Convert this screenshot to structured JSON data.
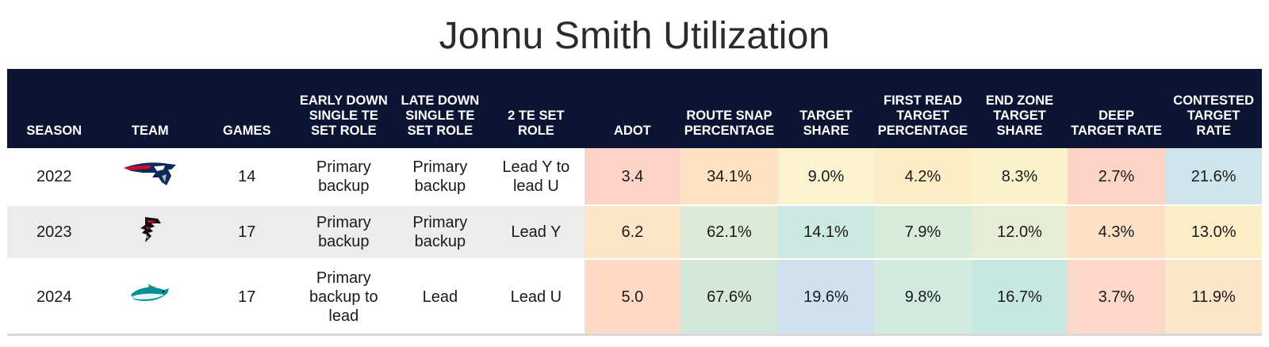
{
  "title": "Jonnu Smith Utilization",
  "columns": [
    "SEASON",
    "TEAM",
    "GAMES",
    "EARLY DOWN SINGLE TE SET ROLE",
    "LATE DOWN SINGLE TE SET ROLE",
    "2 TE SET ROLE",
    "ADOT",
    "ROUTE SNAP PERCENTAGE",
    "TARGET SHARE",
    "FIRST READ TARGET PERCENTAGE",
    "END ZONE TARGET SHARE",
    "DEEP TARGET RATE",
    "CONTESTED TARGET RATE"
  ],
  "rows": [
    {
      "season": "2022",
      "team_logo": "patriots-logo-icon",
      "games": "14",
      "early_down": "Primary backup",
      "late_down": "Primary backup",
      "two_te": "Lead Y to lead U",
      "adot": "3.4",
      "route_snap": "34.1%",
      "target_share": "9.0%",
      "first_read": "4.2%",
      "end_zone": "8.3%",
      "deep_target": "2.7%",
      "contested": "21.6%",
      "colors": [
        "#fdd3c8",
        "#fde2c4",
        "#fbf3cf",
        "#fdedc4",
        "#faf1cd",
        "#fcd4c6",
        "#cfe5ec"
      ]
    },
    {
      "season": "2023",
      "team_logo": "falcons-logo-icon",
      "games": "17",
      "early_down": "Primary backup",
      "late_down": "Primary backup",
      "two_te": "Lead Y",
      "adot": "6.2",
      "route_snap": "62.1%",
      "target_share": "14.1%",
      "first_read": "7.9%",
      "end_zone": "12.0%",
      "deep_target": "4.3%",
      "contested": "13.0%",
      "colors": [
        "#fde6c7",
        "#dcead7",
        "#cbe9e0",
        "#d8ecdb",
        "#e7edd5",
        "#fde0c6",
        "#fdeec8"
      ]
    },
    {
      "season": "2024",
      "team_logo": "dolphins-logo-icon",
      "games": "17",
      "early_down": "Primary backup to lead",
      "late_down": "Lead",
      "two_te": "Lead U",
      "adot": "5.0",
      "route_snap": "67.6%",
      "target_share": "19.6%",
      "first_read": "9.8%",
      "end_zone": "16.7%",
      "deep_target": "3.7%",
      "contested": "11.9%",
      "colors": [
        "#fdd9c6",
        "#d3e8d9",
        "#cfe1ef",
        "#d1eadf",
        "#c7e8e0",
        "#fdd8c8",
        "#fde5c9"
      ]
    }
  ]
}
